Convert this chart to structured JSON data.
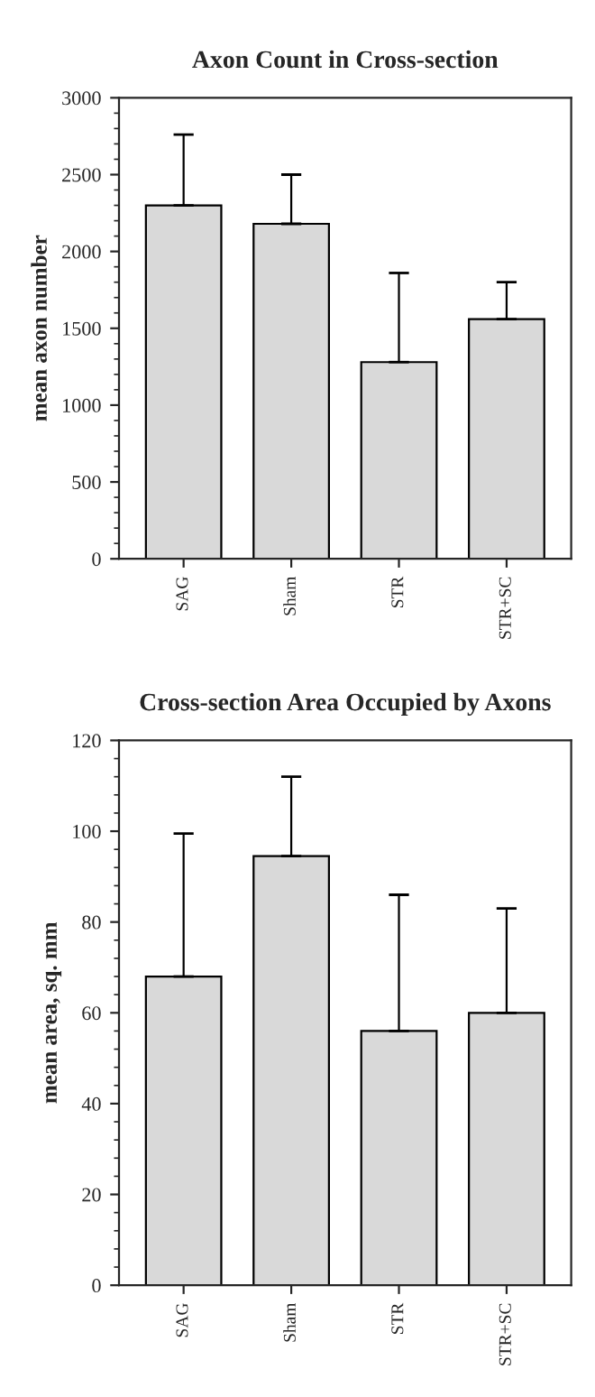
{
  "chart_data": [
    {
      "type": "bar",
      "title": "Axon Count in Cross-section",
      "ylabel": "mean axon number",
      "categories": [
        "SAG",
        "Sham",
        "STR",
        "STR+SC"
      ],
      "values": [
        2300,
        2180,
        1280,
        1560
      ],
      "errors": [
        [
          2300,
          2760
        ],
        [
          2180,
          2500
        ],
        [
          1280,
          1860
        ],
        [
          1560,
          1800
        ]
      ],
      "color": "#d9d9d9",
      "ylim": [
        0,
        3000
      ],
      "yticks": [
        0,
        500,
        1000,
        1500,
        2000,
        2500,
        3000
      ],
      "grid": false,
      "legend": false
    },
    {
      "type": "bar",
      "title": "Cross-section Area Occupied by Axons",
      "ylabel": "mean area, sq. mm",
      "categories": [
        "SAG",
        "Sham",
        "STR",
        "STR+SC"
      ],
      "values": [
        68,
        94.5,
        56,
        60
      ],
      "errors": [
        [
          68,
          99.5
        ],
        [
          94.5,
          112
        ],
        [
          56,
          86
        ],
        [
          60,
          83
        ]
      ],
      "color": "#d9d9d9",
      "ylim": [
        0,
        120
      ],
      "yticks": [
        0,
        20,
        40,
        60,
        80,
        100,
        120
      ],
      "grid": false,
      "legend": false
    }
  ]
}
